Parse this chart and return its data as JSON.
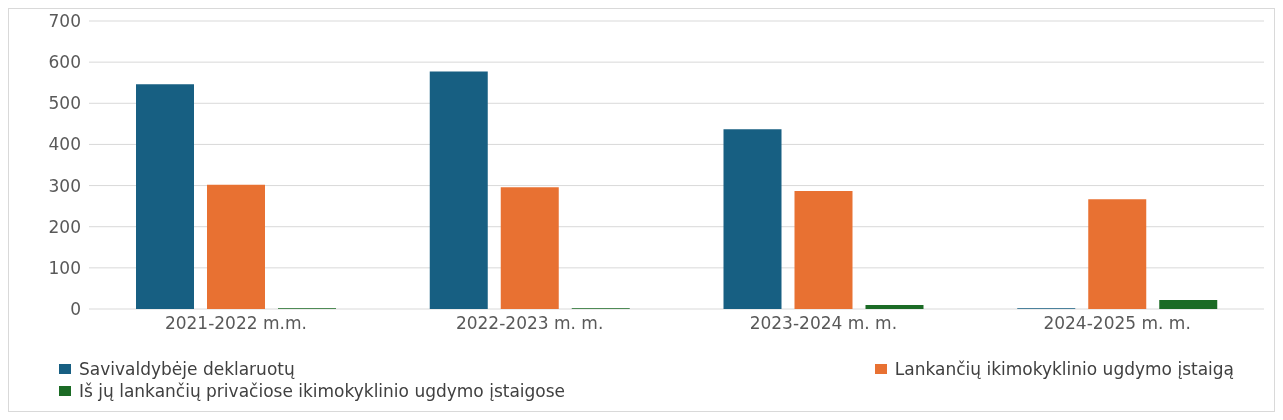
{
  "chart_data": {
    "type": "bar",
    "categories": [
      "2021-2022 m.m.",
      "2022-2023 m. m.",
      "2023-2024 m. m.",
      "2024-2025 m. m."
    ],
    "series": [
      {
        "name": "Savivaldybėje deklaruotų",
        "color": "#175f82",
        "values": [
          546,
          577,
          437,
          2
        ]
      },
      {
        "name": "Lankančių ikimokyklinio ugdymo įstaigą",
        "color": "#e87132",
        "values": [
          302,
          296,
          287,
          267
        ]
      },
      {
        "name": "Iš jų lankančių privačiose ikimokyklinio ugdymo įstaigose",
        "color": "#1b6b25",
        "values": [
          2,
          2,
          10,
          22
        ]
      }
    ],
    "ylim": [
      0,
      700
    ],
    "yticks": [
      0,
      100,
      200,
      300,
      400,
      500,
      600,
      700
    ],
    "grid": "y",
    "legend": "bottom"
  }
}
